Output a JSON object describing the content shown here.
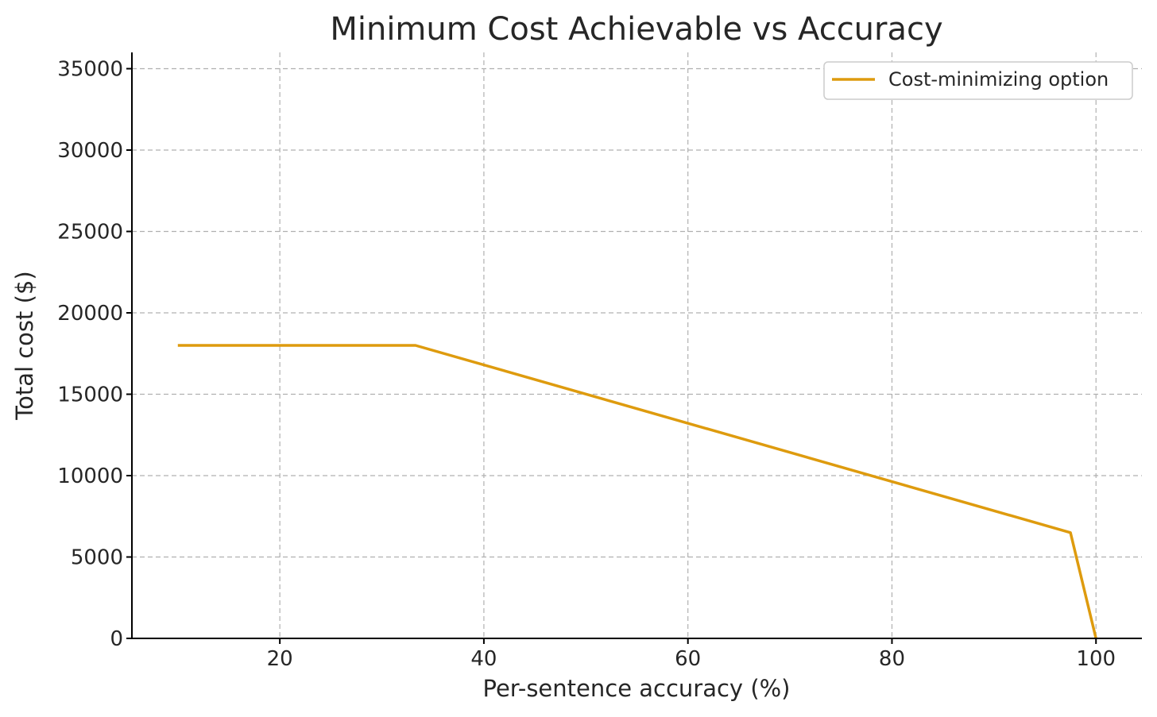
{
  "chart_data": {
    "type": "line",
    "title": "Minimum Cost Achievable vs Accuracy",
    "xlabel": "Per-sentence accuracy (%)",
    "ylabel": "Total cost ($)",
    "xlim": [
      5.5,
      104.5
    ],
    "ylim": [
      0,
      36000
    ],
    "xticks": [
      20,
      40,
      60,
      80,
      100
    ],
    "yticks": [
      0,
      5000,
      10000,
      15000,
      20000,
      25000,
      30000,
      35000
    ],
    "grid": true,
    "legend_position": "top-right",
    "series": [
      {
        "name": "Cost-minimizing option",
        "color": "#de9b0e",
        "x": [
          10,
          33.3,
          97.5,
          100
        ],
        "y": [
          18000,
          18000,
          6500,
          0
        ]
      }
    ]
  }
}
